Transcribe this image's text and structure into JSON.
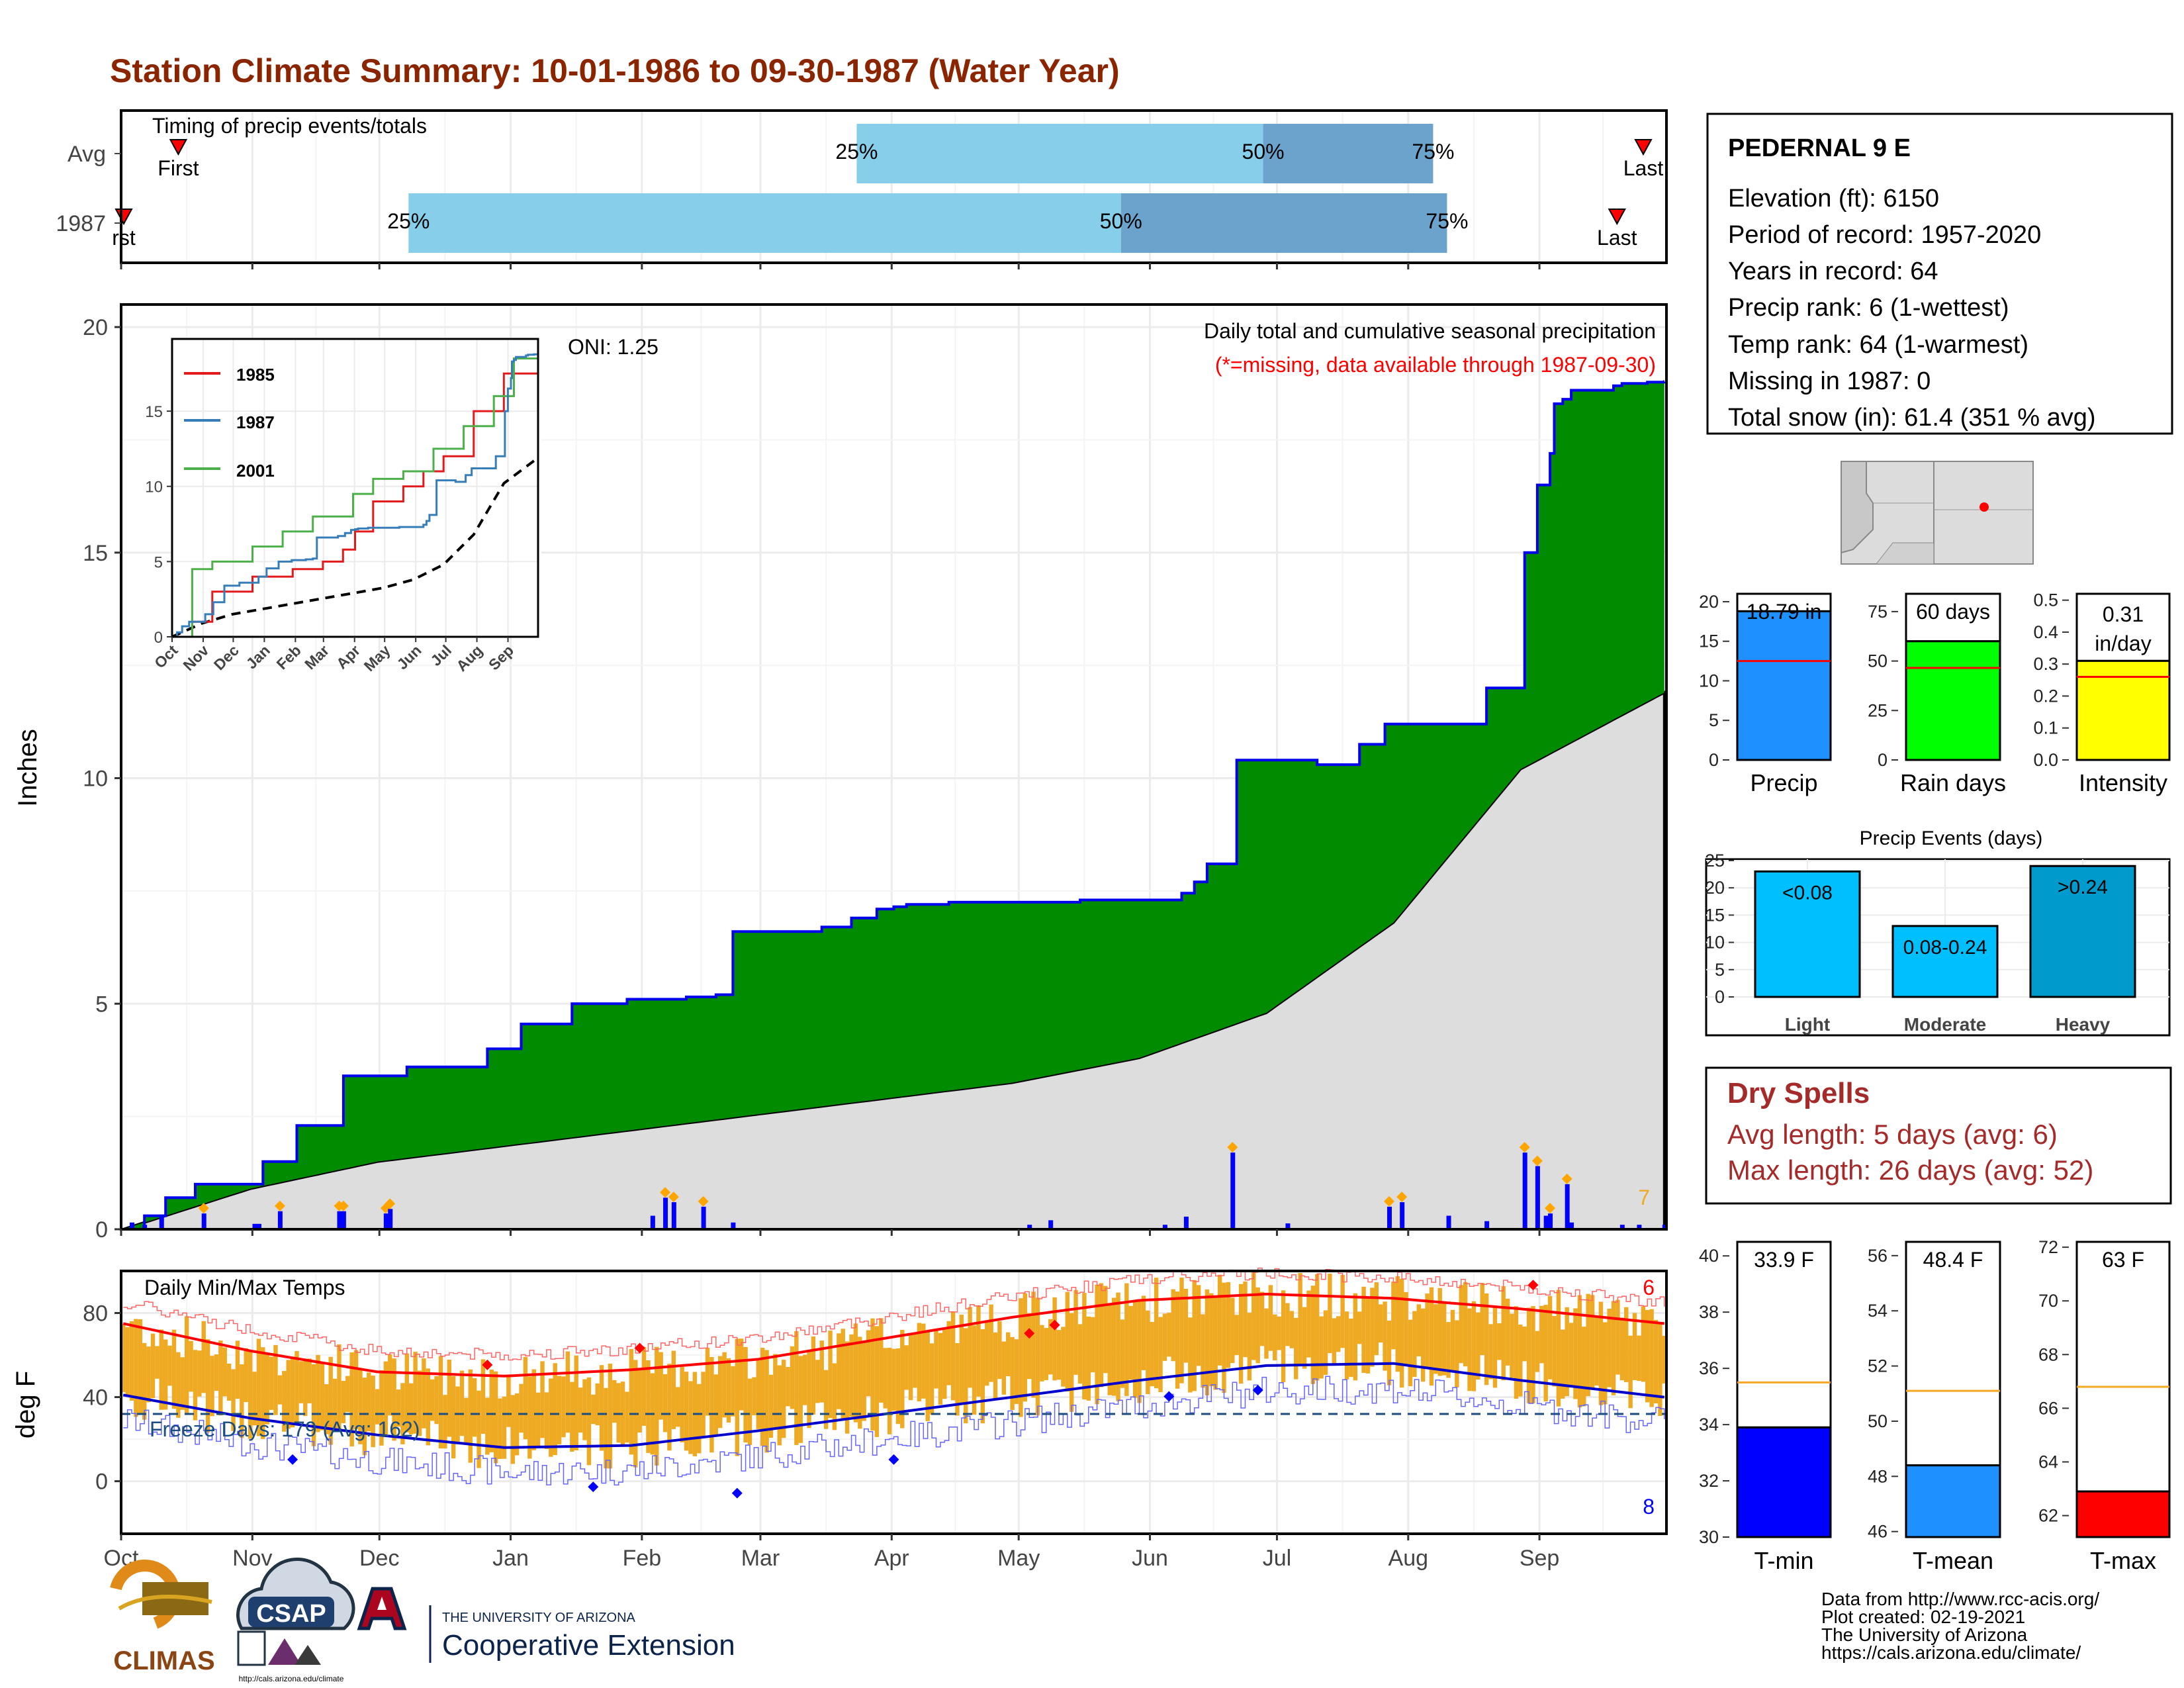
{
  "title": "Station Climate Summary: 10-01-1986 to 09-30-1987 (Water Year)",
  "months": [
    "Oct",
    "Nov",
    "Dec",
    "Jan",
    "Feb",
    "Mar",
    "Apr",
    "May",
    "Jun",
    "Jul",
    "Aug",
    "Sep"
  ],
  "timing": {
    "label": "Timing of precip events/totals",
    "rows": [
      {
        "name": "Avg",
        "first_label": "First",
        "last_label": "Last",
        "first": 0.037,
        "last": 0.985,
        "p25": 0.476,
        "p50": 0.739,
        "p75": 0.849,
        "p25_label": "25%",
        "p50_label": "50%",
        "p75_label": "75%"
      },
      {
        "name": "1987",
        "first_label": "rst",
        "last_label": "Last",
        "first": 0.0,
        "last": 0.968,
        "p25": 0.186,
        "p50": 0.647,
        "p75": 0.858,
        "p25_label": "25%",
        "p50_label": "50%",
        "p75_label": "75%"
      }
    ]
  },
  "station": {
    "name": "PEDERNAL 9 E",
    "lines": [
      "Elevation (ft): 6150",
      "Period of record: 1957-2020",
      "Years in record: 64",
      "Precip rank: 6 (1-wettest)",
      "Temp rank: 64 (1-warmest)",
      "Missing in 1987: 0",
      "Total snow (in): 61.4 (351 % avg)"
    ]
  },
  "precip_panel": {
    "ylabel": "Inches",
    "title": "Daily total and cumulative seasonal precipitation",
    "subtitle": "(*=missing, data available through 1987-09-30)",
    "oni": "ONI: 1.25",
    "corner_count": "7",
    "yticks": [
      "0",
      "5",
      "10",
      "15",
      "20"
    ]
  },
  "inset": {
    "legend": [
      "1985",
      "1987",
      "2001"
    ],
    "colors": [
      "#e31a1c",
      "#377eb8",
      "#4daf4a"
    ],
    "yticks": [
      "0",
      "5",
      "10",
      "15"
    ],
    "xticks": [
      "Oct",
      "Nov",
      "Dec",
      "Jan",
      "Feb",
      "Mar",
      "Apr",
      "May",
      "Jun",
      "Jul",
      "Aug",
      "Sep"
    ]
  },
  "temp_panel": {
    "ylabel": "deg F",
    "title": "Daily Min/Max Temps",
    "freeze": "Freeze Days: 179 (Avg: 162)",
    "top_count": "6",
    "bottom_count": "8",
    "yticks": [
      "0",
      "40",
      "80"
    ]
  },
  "bars": {
    "precip": {
      "value_label": "18.79 in",
      "label": "Precip",
      "yticks": [
        "0",
        "5",
        "10",
        "15",
        "20"
      ]
    },
    "raindays": {
      "value_label": "60 days",
      "label": "Rain days",
      "yticks": [
        "0",
        "25",
        "50",
        "75"
      ]
    },
    "intensity": {
      "value_label": "0.31 in/day",
      "label": "Intensity",
      "yticks": [
        "0.0",
        "0.1",
        "0.2",
        "0.3",
        "0.4",
        "0.5"
      ]
    }
  },
  "events": {
    "title": "Precip Events (days)",
    "yticks": [
      "0",
      "5",
      "10",
      "15",
      "20",
      "25"
    ],
    "categories": [
      "Light",
      "Moderate",
      "Heavy"
    ],
    "labels": [
      "<0.08",
      "0.08-0.24",
      ">0.24"
    ]
  },
  "dry_spells": {
    "title": "Dry Spells",
    "avg": "Avg length: 5 days (avg: 6)",
    "max": "Max length: 26 days (avg: 52)"
  },
  "temp_bars": {
    "tmin": {
      "value_label": "33.9 F",
      "label": "T-min",
      "yticks": [
        "30",
        "32",
        "34",
        "36",
        "38",
        "40"
      ]
    },
    "tmean": {
      "value_label": "48.4 F",
      "label": "T-mean",
      "yticks": [
        "46",
        "48",
        "50",
        "52",
        "54",
        "56"
      ]
    },
    "tmax": {
      "value_label": "63 F",
      "label": "T-max",
      "yticks": [
        "62",
        "64",
        "66",
        "68",
        "70",
        "72"
      ]
    }
  },
  "footer": {
    "lines": [
      "Data from http://www.rcc-acis.org/",
      "Plot created: 02-19-2021",
      "The University of Arizona",
      "https://cals.arizona.edu/climate/"
    ],
    "climas": "CLIMAS",
    "csap": "CSAP",
    "csap_url": "http://cals.arizona.edu/climate",
    "ua_small": "THE UNIVERSITY OF ARIZONA",
    "ua_big": "Cooperative Extension"
  },
  "colors": {
    "title": "#8B2500",
    "cumulative_fill": "#008b00",
    "avg_fill": "#dddddd",
    "outline_blue": "#0000ee",
    "q_light": "#87ceeb",
    "q_dark": "#6ba3cc",
    "temp_bar": "#eeaa22",
    "red": "#ff0000",
    "blue": "#0000ff"
  },
  "chart_data": [
    {
      "type": "area",
      "name": "cumulative_precip",
      "title": "Daily total and cumulative seasonal precipitation",
      "ylabel": "Inches",
      "ylim": [
        0,
        20.5
      ],
      "xlim": [
        "1986-10-01",
        "1987-09-30"
      ],
      "series": [
        {
          "name": "1987 cumulative",
          "x": [
            0,
            5,
            10,
            17,
            33,
            41,
            52,
            67,
            86,
            94,
            106,
            119,
            133,
            140,
            144,
            165,
            172,
            178,
            182,
            185,
            195,
            226,
            250,
            253,
            256,
            263,
            282,
            292,
            298,
            322,
            331,
            334,
            337,
            338,
            340,
            342,
            352,
            354,
            360,
            364
          ],
          "values": [
            0,
            0.3,
            0.7,
            1.0,
            1.5,
            2.3,
            3.4,
            3.6,
            4.0,
            4.55,
            5.0,
            5.1,
            5.15,
            5.2,
            6.6,
            6.7,
            6.9,
            7.1,
            7.15,
            7.2,
            7.25,
            7.3,
            7.45,
            7.7,
            8.1,
            10.4,
            10.3,
            10.75,
            11.2,
            12.0,
            15.0,
            16.5,
            17.2,
            18.3,
            18.4,
            18.6,
            18.7,
            18.75,
            18.78,
            18.79
          ]
        },
        {
          "name": "average cumulative",
          "x": [
            0,
            30,
            60,
            90,
            120,
            150,
            180,
            210,
            240,
            270,
            300,
            330,
            364
          ],
          "values": [
            0,
            0.9,
            1.5,
            1.85,
            2.2,
            2.55,
            2.9,
            3.25,
            3.8,
            4.8,
            6.8,
            10.2,
            11.9
          ]
        }
      ]
    },
    {
      "type": "bar",
      "name": "daily_precip_spikes",
      "x": [
        2,
        5,
        9,
        19,
        31,
        32,
        37,
        51,
        52,
        62,
        63,
        125,
        128,
        130,
        137,
        144,
        214,
        219,
        246,
        251,
        262,
        275,
        299,
        302,
        313,
        322,
        331,
        334,
        336,
        337,
        341,
        342,
        354,
        358,
        364
      ],
      "values": [
        0.15,
        0.1,
        0.3,
        0.35,
        0.12,
        0.12,
        0.4,
        0.4,
        0.4,
        0.35,
        0.45,
        0.3,
        0.7,
        0.6,
        0.5,
        0.15,
        0.1,
        0.2,
        0.1,
        0.28,
        1.7,
        0.13,
        0.5,
        0.6,
        0.3,
        0.18,
        1.7,
        1.4,
        0.3,
        0.35,
        1.0,
        0.15,
        0.1,
        0.1,
        0.1
      ]
    },
    {
      "type": "bar",
      "name": "summary_bars",
      "categories": [
        "Precip",
        "Rain days",
        "Intensity"
      ],
      "values": [
        18.79,
        60,
        0.31
      ],
      "averages": [
        12.5,
        46.5,
        0.26
      ],
      "ylim": [
        [
          0,
          21
        ],
        [
          0,
          84
        ],
        [
          0,
          0.52
        ]
      ]
    },
    {
      "type": "bar",
      "name": "precip_events",
      "title": "Precip Events (days)",
      "categories": [
        "Light",
        "Moderate",
        "Heavy"
      ],
      "values": [
        23,
        13,
        24
      ],
      "ylim": [
        0,
        25
      ]
    },
    {
      "type": "line",
      "name": "daily_temps",
      "title": "Daily Min/Max Temps",
      "ylabel": "deg F",
      "ylim": [
        -25,
        100
      ],
      "freeze_line": 32,
      "series": [
        {
          "name": "avg max",
          "x": [
            0,
            30,
            60,
            90,
            120,
            150,
            180,
            210,
            240,
            270,
            300,
            330,
            364
          ],
          "values": [
            75,
            62,
            52,
            50,
            53,
            58,
            68,
            78,
            86,
            89,
            87,
            82,
            75
          ]
        },
        {
          "name": "avg min",
          "x": [
            0,
            30,
            60,
            90,
            120,
            150,
            180,
            210,
            240,
            270,
            300,
            330,
            364
          ],
          "values": [
            41,
            30,
            22,
            16,
            17,
            24,
            32,
            40,
            48,
            55,
            56,
            48,
            40
          ]
        }
      ]
    },
    {
      "type": "bar",
      "name": "temp_summary",
      "categories": [
        "T-min",
        "T-mean",
        "T-max"
      ],
      "values": [
        33.9,
        48.4,
        62.9
      ],
      "averages": [
        35.5,
        51.1,
        66.8
      ],
      "ylim": [
        [
          30,
          40.5
        ],
        [
          45.8,
          56.5
        ],
        [
          61.2,
          72.2
        ]
      ]
    }
  ]
}
